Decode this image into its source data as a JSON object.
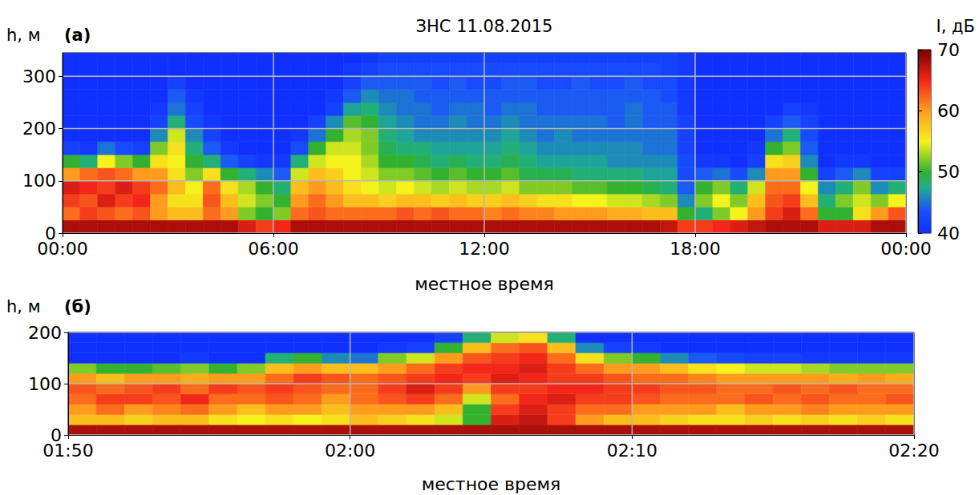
{
  "chart_data": [
    {
      "type": "heatmap",
      "title": "ЗНС 11.08.2015",
      "annotations": [
        "(а)"
      ],
      "x_label": "местное время",
      "y_label": "h, м",
      "xlim": [
        0,
        24
      ],
      "xticks": [
        {
          "value": 0,
          "label": "00:00"
        },
        {
          "value": 6,
          "label": "06:00"
        },
        {
          "value": 12,
          "label": "12:00"
        },
        {
          "value": 18,
          "label": "18:00"
        },
        {
          "value": 24,
          "label": "00:00"
        }
      ],
      "ylim": [
        0,
        345
      ],
      "yticks": [
        0,
        100,
        200,
        300
      ],
      "grid": true,
      "x": [
        0.25,
        0.75,
        1.25,
        1.75,
        2.25,
        2.75,
        3.25,
        3.75,
        4.25,
        4.75,
        5.25,
        5.75,
        6.25,
        6.75,
        7.25,
        7.75,
        8.25,
        8.75,
        9.25,
        9.75,
        10.25,
        10.75,
        11.25,
        11.75,
        12.25,
        12.75,
        13.25,
        13.75,
        14.25,
        14.75,
        15.25,
        15.75,
        16.25,
        16.75,
        17.25,
        17.75,
        18.25,
        18.75,
        19.25,
        19.75,
        20.25,
        20.75,
        21.25,
        21.75,
        22.25,
        22.75,
        23.25,
        23.75
      ],
      "y": [
        12.5,
        37.5,
        62.5,
        87.5,
        112.5,
        137.5,
        162.5,
        187.5,
        212.5,
        237.5,
        262.5,
        287.5,
        312.5,
        337.5
      ],
      "values": [
        [
          68,
          62,
          64,
          66,
          60,
          50,
          42,
          40,
          40,
          40,
          40,
          40,
          40,
          40
        ],
        [
          68,
          64,
          63,
          65,
          62,
          48,
          41,
          40,
          40,
          40,
          40,
          40,
          40,
          40
        ],
        [
          68,
          63,
          66,
          64,
          63,
          55,
          45,
          40,
          40,
          40,
          40,
          40,
          40,
          40
        ],
        [
          68,
          62,
          64,
          66,
          62,
          52,
          43,
          40,
          40,
          40,
          40,
          40,
          40,
          40
        ],
        [
          68,
          63,
          65,
          64,
          60,
          50,
          42,
          40,
          40,
          40,
          40,
          40,
          40,
          40
        ],
        [
          68,
          60,
          60,
          62,
          60,
          56,
          52,
          46,
          42,
          41,
          40,
          40,
          40,
          40
        ],
        [
          68,
          58,
          56,
          58,
          56,
          55,
          56,
          54,
          48,
          45,
          44,
          42,
          40,
          40
        ],
        [
          68,
          58,
          56,
          55,
          52,
          50,
          48,
          46,
          43,
          42,
          41,
          40,
          40,
          40
        ],
        [
          68,
          62,
          63,
          62,
          56,
          48,
          44,
          42,
          41,
          40,
          40,
          40,
          40,
          40
        ],
        [
          68,
          60,
          58,
          56,
          50,
          44,
          41,
          40,
          40,
          40,
          40,
          40,
          40,
          40
        ],
        [
          66,
          52,
          54,
          53,
          48,
          42,
          40,
          40,
          40,
          40,
          40,
          40,
          40,
          40
        ],
        [
          64,
          50,
          52,
          50,
          46,
          41,
          40,
          40,
          40,
          40,
          40,
          40,
          40,
          40
        ],
        [
          65,
          52,
          50,
          48,
          44,
          41,
          40,
          40,
          40,
          40,
          40,
          40,
          40,
          40
        ],
        [
          68,
          62,
          60,
          58,
          54,
          48,
          43,
          41,
          40,
          40,
          40,
          40,
          40,
          40
        ],
        [
          68,
          63,
          62,
          60,
          58,
          54,
          50,
          45,
          42,
          40,
          40,
          40,
          40,
          40
        ],
        [
          68,
          62,
          60,
          58,
          57,
          55,
          54,
          50,
          46,
          42,
          41,
          40,
          40,
          40
        ],
        [
          68,
          62,
          58,
          56,
          55,
          55,
          54,
          53,
          51,
          47,
          44,
          42,
          41,
          40
        ],
        [
          68,
          62,
          58,
          55,
          54,
          53,
          52,
          52,
          50,
          48,
          46,
          44,
          42,
          41
        ],
        [
          68,
          62,
          57,
          54,
          52,
          50,
          49,
          48,
          47,
          46,
          45,
          44,
          43,
          42
        ],
        [
          68,
          63,
          58,
          55,
          52,
          50,
          48,
          47,
          46,
          45,
          45,
          44,
          43,
          42
        ],
        [
          68,
          62,
          58,
          54,
          51,
          49,
          48,
          46,
          45,
          45,
          44,
          44,
          43,
          42
        ],
        [
          68,
          63,
          57,
          53,
          50,
          48,
          47,
          46,
          45,
          44,
          44,
          43,
          43,
          42
        ],
        [
          68,
          62,
          58,
          54,
          51,
          49,
          47,
          46,
          46,
          45,
          44,
          44,
          43,
          42
        ],
        [
          68,
          62,
          57,
          53,
          50,
          48,
          47,
          46,
          45,
          45,
          44,
          43,
          43,
          42
        ],
        [
          68,
          61,
          57,
          53,
          50,
          48,
          47,
          46,
          45,
          44,
          44,
          43,
          43,
          42
        ],
        [
          68,
          62,
          58,
          54,
          51,
          49,
          48,
          47,
          46,
          45,
          44,
          44,
          43,
          42
        ],
        [
          68,
          61,
          57,
          52,
          49,
          48,
          47,
          46,
          45,
          45,
          44,
          44,
          43,
          42
        ],
        [
          68,
          61,
          56,
          52,
          49,
          47,
          46,
          45,
          45,
          44,
          44,
          43,
          43,
          42
        ],
        [
          68,
          60,
          56,
          52,
          49,
          47,
          46,
          46,
          45,
          44,
          44,
          43,
          43,
          42
        ],
        [
          68,
          60,
          55,
          51,
          48,
          47,
          46,
          45,
          45,
          44,
          44,
          44,
          43,
          42
        ],
        [
          68,
          60,
          55,
          51,
          48,
          47,
          46,
          45,
          45,
          44,
          44,
          43,
          43,
          42
        ],
        [
          68,
          59,
          54,
          50,
          48,
          46,
          46,
          45,
          44,
          44,
          44,
          43,
          43,
          42
        ],
        [
          68,
          59,
          54,
          50,
          48,
          46,
          46,
          45,
          45,
          45,
          44,
          44,
          43,
          42
        ],
        [
          68,
          58,
          53,
          49,
          47,
          46,
          45,
          45,
          44,
          44,
          44,
          43,
          43,
          42
        ],
        [
          67,
          58,
          52,
          48,
          47,
          46,
          45,
          45,
          44,
          44,
          43,
          43,
          42,
          42
        ],
        [
          64,
          50,
          46,
          44,
          43,
          43,
          42,
          42,
          42,
          41,
          41,
          41,
          41,
          41
        ],
        [
          64,
          48,
          52,
          50,
          44,
          41,
          40,
          40,
          40,
          40,
          40,
          40,
          40,
          40
        ],
        [
          65,
          52,
          55,
          52,
          45,
          41,
          40,
          40,
          40,
          40,
          40,
          40,
          40,
          40
        ],
        [
          66,
          55,
          52,
          48,
          43,
          40,
          40,
          40,
          40,
          40,
          40,
          40,
          40,
          40
        ],
        [
          67,
          60,
          58,
          54,
          46,
          42,
          41,
          40,
          40,
          40,
          40,
          40,
          40,
          40
        ],
        [
          68,
          64,
          63,
          62,
          60,
          56,
          50,
          45,
          42,
          40,
          40,
          40,
          40,
          40
        ],
        [
          68,
          66,
          64,
          62,
          60,
          57,
          52,
          48,
          44,
          42,
          40,
          40,
          40,
          40
        ],
        [
          68,
          62,
          58,
          55,
          50,
          46,
          44,
          43,
          42,
          41,
          40,
          40,
          40,
          40
        ],
        [
          66,
          50,
          48,
          46,
          42,
          40,
          40,
          40,
          40,
          40,
          40,
          40,
          40,
          40
        ],
        [
          66,
          50,
          52,
          48,
          44,
          41,
          40,
          40,
          40,
          40,
          40,
          40,
          40,
          40
        ],
        [
          66,
          56,
          54,
          52,
          46,
          41,
          40,
          40,
          40,
          40,
          40,
          40,
          40,
          40
        ],
        [
          68,
          60,
          52,
          46,
          42,
          40,
          40,
          40,
          40,
          40,
          40,
          40,
          40,
          40
        ],
        [
          68,
          63,
          55,
          48,
          42,
          40,
          40,
          40,
          40,
          40,
          40,
          40,
          40,
          40
        ]
      ],
      "colorbar": {
        "label": "I, дБ",
        "lim": [
          40,
          70
        ],
        "ticks": [
          40,
          50,
          60,
          70
        ]
      }
    },
    {
      "type": "heatmap",
      "annotations": [
        "(б)"
      ],
      "x_label": "местное время",
      "y_label": "h, м",
      "xlim": [
        110,
        140
      ],
      "xticks": [
        {
          "value": 110,
          "label": "01:50"
        },
        {
          "value": 120,
          "label": "02:00"
        },
        {
          "value": 130,
          "label": "02:10"
        },
        {
          "value": 140,
          "label": "02:20"
        }
      ],
      "ylim": [
        0,
        200
      ],
      "yticks": [
        0,
        100,
        200
      ],
      "grid": true,
      "x": [
        110.5,
        111.5,
        112.5,
        113.5,
        114.5,
        115.5,
        116.5,
        117.5,
        118.5,
        119.5,
        120.5,
        121.5,
        122.5,
        123.5,
        124.5,
        125.5,
        126.5,
        127.5,
        128.5,
        129.5,
        130.5,
        131.5,
        132.5,
        133.5,
        134.5,
        135.5,
        136.5,
        137.5,
        138.5,
        139.5
      ],
      "y": [
        10,
        30,
        50,
        70,
        90,
        110,
        130,
        150,
        170,
        190
      ],
      "values": [
        [
          68,
          58,
          60,
          62,
          63,
          60,
          52,
          40,
          40,
          40
        ],
        [
          68,
          58,
          62,
          64,
          62,
          58,
          50,
          40,
          40,
          40
        ],
        [
          68,
          57,
          60,
          64,
          63,
          60,
          50,
          40,
          40,
          40
        ],
        [
          68,
          58,
          61,
          63,
          64,
          60,
          51,
          40,
          40,
          40
        ],
        [
          68,
          58,
          62,
          65,
          62,
          59,
          52,
          41,
          40,
          40
        ],
        [
          68,
          56,
          60,
          62,
          64,
          60,
          50,
          40,
          40,
          40
        ],
        [
          68,
          55,
          58,
          62,
          63,
          60,
          52,
          40,
          40,
          40
        ],
        [
          68,
          56,
          60,
          63,
          64,
          62,
          58,
          48,
          40,
          40
        ],
        [
          68,
          55,
          60,
          62,
          63,
          64,
          60,
          50,
          40,
          40
        ],
        [
          68,
          56,
          58,
          60,
          62,
          63,
          58,
          46,
          40,
          40
        ],
        [
          68,
          58,
          60,
          62,
          62,
          62,
          58,
          45,
          40,
          40
        ],
        [
          68,
          57,
          60,
          63,
          64,
          63,
          60,
          52,
          41,
          40
        ],
        [
          68,
          56,
          60,
          64,
          66,
          64,
          62,
          54,
          42,
          40
        ],
        [
          68,
          54,
          58,
          62,
          64,
          65,
          64,
          60,
          50,
          42
        ],
        [
          68,
          50,
          50,
          54,
          60,
          64,
          65,
          63,
          58,
          48
        ],
        [
          68,
          66,
          64,
          62,
          64,
          66,
          65,
          64,
          62,
          54
        ],
        [
          68,
          67,
          66,
          65,
          64,
          65,
          66,
          65,
          63,
          56
        ],
        [
          68,
          64,
          64,
          66,
          65,
          64,
          64,
          62,
          58,
          48
        ],
        [
          68,
          60,
          62,
          64,
          65,
          64,
          62,
          56,
          46,
          40
        ],
        [
          68,
          58,
          62,
          64,
          64,
          63,
          60,
          52,
          42,
          40
        ],
        [
          68,
          58,
          60,
          63,
          64,
          62,
          60,
          50,
          41,
          40
        ],
        [
          68,
          57,
          60,
          62,
          63,
          62,
          58,
          46,
          40,
          40
        ],
        [
          68,
          56,
          60,
          62,
          63,
          61,
          56,
          44,
          40,
          40
        ],
        [
          68,
          56,
          58,
          62,
          62,
          60,
          55,
          43,
          40,
          40
        ],
        [
          68,
          57,
          60,
          63,
          62,
          60,
          54,
          42,
          40,
          40
        ],
        [
          68,
          56,
          60,
          62,
          63,
          60,
          54,
          42,
          40,
          40
        ],
        [
          68,
          57,
          61,
          63,
          62,
          60,
          53,
          41,
          40,
          40
        ],
        [
          68,
          56,
          60,
          62,
          63,
          59,
          52,
          41,
          40,
          40
        ],
        [
          68,
          57,
          60,
          62,
          62,
          60,
          52,
          41,
          40,
          40
        ],
        [
          68,
          56,
          60,
          63,
          62,
          59,
          52,
          41,
          40,
          40
        ]
      ]
    }
  ]
}
